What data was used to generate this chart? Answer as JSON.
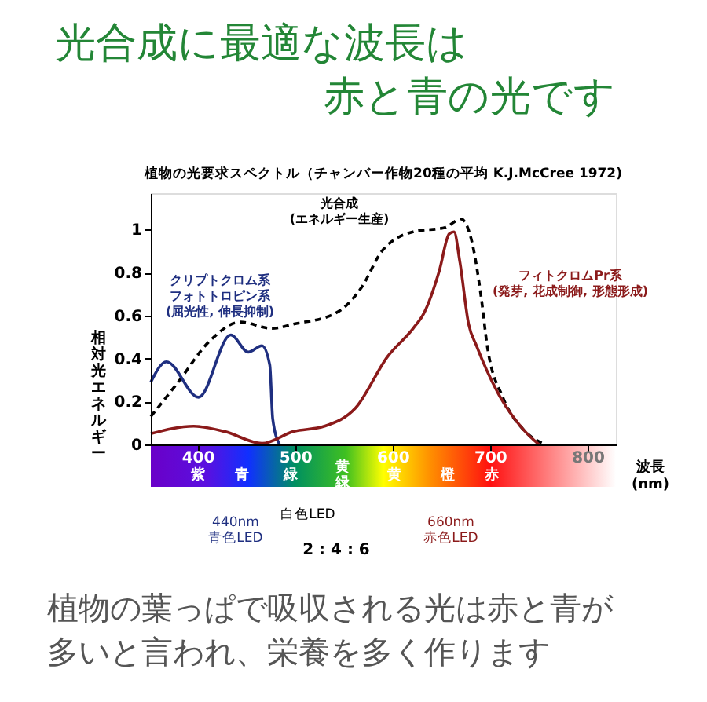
{
  "chart_data": {
    "type": "line",
    "title": "光合成に最適な波長は赤と青の光です",
    "subtitle": "植物の光要求スペクトル（チャンバー作物20種の平均 K.J.McCree 1972)",
    "xlabel": "波長(nm)",
    "ylabel": "相対光エネルギー",
    "xlim": [
      352,
      829
    ],
    "ylim": [
      0,
      1.17
    ],
    "xticks": [
      400,
      500,
      600,
      700,
      800
    ],
    "yticks": [
      0,
      0.2,
      0.4,
      0.6,
      0.8,
      1
    ],
    "grid": false,
    "marker": "none",
    "series": [
      {
        "color": "#000000",
        "line_style": "dashed",
        "x": [
          352,
          380,
          412,
          444,
          476,
          498,
          541,
          568,
          589,
          621,
          654,
          670,
          681,
          691,
          697,
          713,
          734,
          756
        ],
        "values": [
          0.13,
          0.29,
          0.48,
          0.57,
          0.54,
          0.56,
          0.61,
          0.73,
          0.9,
          0.99,
          1.01,
          1.05,
          0.95,
          0.68,
          0.46,
          0.22,
          0.07,
          0
        ]
      },
      {
        "color": "#1f2f80",
        "line_style": "solid",
        "x": [
          352,
          368,
          401,
          434,
          452,
          466,
          474,
          477,
          484
        ],
        "values": [
          0.29,
          0.385,
          0.22,
          0.51,
          0.43,
          0.46,
          0.37,
          0.12,
          0
        ]
      },
      {
        "color": "#8b1a1a",
        "line_style": "solid",
        "x": [
          352,
          396,
          428,
          466,
          498,
          530,
          562,
          595,
          621,
          632,
          648,
          658,
          663,
          669,
          678,
          686,
          708,
          734,
          750
        ],
        "values": [
          0.05,
          0.085,
          0.06,
          0.005,
          0.06,
          0.085,
          0.17,
          0.41,
          0.54,
          0.61,
          0.81,
          0.98,
          0.99,
          0.85,
          0.56,
          0.46,
          0.24,
          0.07,
          0
        ]
      }
    ],
    "annotations": [
      "光合成(エネルギー生産)",
      "クリプトクロム系フォトトロピン系(屈光性, 伸長抑制)",
      "フィトクロムPr系(発芽, 花成制御, 形態形成)",
      "紫",
      "青",
      "緑",
      "黄緑",
      "黄",
      "橙",
      "赤",
      "440nm 青色LED",
      "白色LED",
      "660nm 赤色LED",
      "2 : 4 : 6",
      "植物の葉っぱで吸収される光は赤と青が多いと言われ、栄養を多く作ります"
    ]
  }
}
